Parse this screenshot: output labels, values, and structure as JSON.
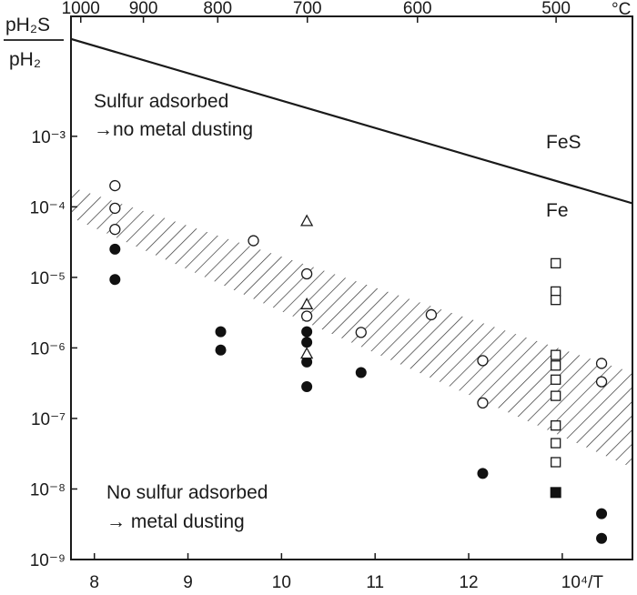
{
  "chart_data": {
    "type": "scatter",
    "title": "",
    "xlabel": "10⁴/T",
    "ylabel_num": "pH₂S",
    "ylabel_den": "pH₂",
    "top_unit": "°C",
    "xlim": [
      7.75,
      13.75
    ],
    "ylim_log10": [
      -9,
      -1.3
    ],
    "y_scale": "log",
    "grid": false,
    "x_ticks": [
      8,
      9,
      10,
      11,
      12
    ],
    "x_tick_labels": [
      "8",
      "9",
      "10",
      "11",
      "12"
    ],
    "x_unit_tick": {
      "x": 13,
      "label": "10⁴/T"
    },
    "top_ticks": [
      {
        "t_c": 1000,
        "label": "1000"
      },
      {
        "t_c": 900,
        "label": "900"
      },
      {
        "t_c": 800,
        "label": "800"
      },
      {
        "t_c": 700,
        "label": "700"
      },
      {
        "t_c": 600,
        "label": "600"
      },
      {
        "t_c": 500,
        "label": "500"
      }
    ],
    "y_ticks": [
      {
        "exp": -3,
        "label": "10⁻³"
      },
      {
        "exp": -4,
        "label": "10⁻⁴"
      },
      {
        "exp": -5,
        "label": "10⁻⁵"
      },
      {
        "exp": -6,
        "label": "10⁻⁶"
      },
      {
        "exp": -7,
        "label": "10⁻⁷"
      },
      {
        "exp": -8,
        "label": "10⁻⁸"
      },
      {
        "exp": -9,
        "label": "10⁻⁹"
      }
    ],
    "fes_line": {
      "label": "FeS",
      "phase_below": "Fe",
      "points": [
        [
          7.75,
          -1.62
        ],
        [
          13.75,
          -3.95
        ]
      ]
    },
    "hatched_band": {
      "upper": [
        [
          7.75,
          -3.72
        ],
        [
          13.75,
          -6.35
        ]
      ],
      "lower": [
        [
          7.75,
          -4.15
        ],
        [
          13.75,
          -7.7
        ]
      ]
    },
    "series": [
      {
        "marker": "open-circle",
        "points": [
          [
            8.22,
            -3.7
          ],
          [
            8.22,
            -4.02
          ],
          [
            8.22,
            -4.32
          ],
          [
            9.7,
            -4.48
          ],
          [
            10.27,
            -4.95
          ],
          [
            10.27,
            -5.55
          ],
          [
            10.85,
            -5.78
          ],
          [
            11.6,
            -5.53
          ],
          [
            12.15,
            -6.18
          ],
          [
            12.15,
            -6.78
          ],
          [
            13.42,
            -6.22
          ],
          [
            13.42,
            -6.48
          ]
        ]
      },
      {
        "marker": "filled-circle",
        "points": [
          [
            8.22,
            -4.6
          ],
          [
            8.22,
            -5.03
          ],
          [
            9.35,
            -5.77
          ],
          [
            9.35,
            -6.03
          ],
          [
            10.27,
            -5.77
          ],
          [
            10.27,
            -5.92
          ],
          [
            10.27,
            -6.2
          ],
          [
            10.27,
            -6.55
          ],
          [
            10.85,
            -6.35
          ],
          [
            12.15,
            -7.78
          ],
          [
            13.42,
            -8.35
          ],
          [
            13.42,
            -8.7
          ]
        ]
      },
      {
        "marker": "open-triangle",
        "points": [
          [
            10.27,
            -4.2
          ],
          [
            10.27,
            -5.38
          ],
          [
            10.27,
            -6.08
          ]
        ]
      },
      {
        "marker": "open-square",
        "points": [
          [
            12.93,
            -4.8
          ],
          [
            12.93,
            -5.2
          ],
          [
            12.93,
            -5.32
          ],
          [
            12.93,
            -6.1
          ],
          [
            12.93,
            -6.25
          ],
          [
            12.93,
            -6.45
          ],
          [
            12.93,
            -6.68
          ],
          [
            12.93,
            -7.1
          ],
          [
            12.93,
            -7.35
          ],
          [
            12.93,
            -7.62
          ]
        ]
      },
      {
        "marker": "filled-square",
        "points": [
          [
            12.93,
            -8.05
          ]
        ]
      }
    ],
    "annotations": [
      {
        "line1": "Sulfur adsorbed",
        "line2": "→no metal dusting"
      },
      {
        "line1": "No sulfur adsorbed",
        "line2": "→ metal dusting"
      }
    ]
  }
}
